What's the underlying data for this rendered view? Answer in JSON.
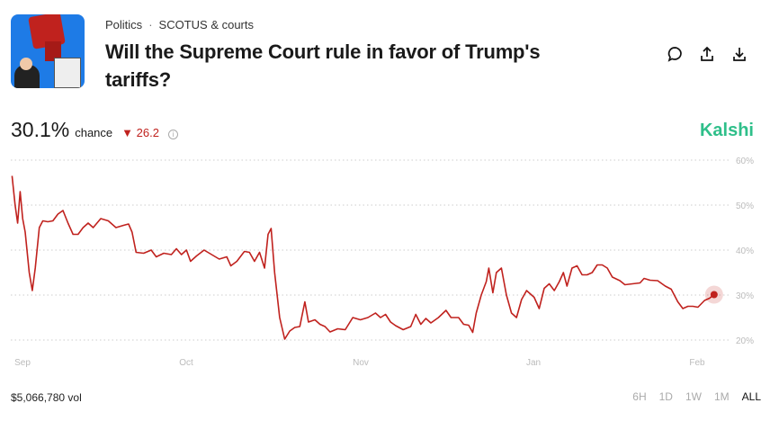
{
  "header": {
    "category": "Politics",
    "subcategory": "SCOTUS & courts",
    "title": "Will the Supreme Court rule in favor of Trump's tariffs?",
    "icons": [
      "comment-icon",
      "share-icon",
      "download-icon"
    ]
  },
  "stat": {
    "value": "30.1%",
    "label": "chance",
    "delta": "26.2",
    "delta_direction": "down",
    "delta_color": "#c0221e"
  },
  "brand": "Kalshi",
  "brand_color": "#2fbf8a",
  "footer": {
    "volume": "$5,066,780 vol",
    "ranges": [
      "6H",
      "1D",
      "1W",
      "1M",
      "ALL"
    ],
    "selected_range": "ALL"
  },
  "chart_data": {
    "type": "line",
    "line_color": "#c0221e",
    "ylim": [
      20,
      60
    ],
    "y_ticks": [
      "60%",
      "50%",
      "40%",
      "30%",
      "20%"
    ],
    "x_ticks": [
      "Sep",
      "Oct",
      "Nov",
      "Jan",
      "Feb"
    ],
    "grid": true,
    "last_value": 30.1,
    "values": [
      56.5,
      50,
      46,
      53,
      47,
      44,
      35,
      31,
      36,
      45,
      46.5,
      46.3,
      46.5,
      48,
      48.8,
      46,
      43.5,
      43.5,
      45,
      46,
      45,
      47,
      46.5,
      45,
      45.5,
      45.8,
      44,
      39.5,
      39.3,
      40,
      38.5,
      39.3,
      39,
      40.3,
      39,
      40,
      37.5,
      38.7,
      40,
      39,
      38,
      38.5,
      36.5,
      37.5,
      39.7,
      39.5,
      37.5,
      39.5,
      36,
      43.5,
      44.8,
      35,
      25,
      20.2,
      22,
      22.8,
      23,
      28.5,
      24,
      24.5,
      23.5,
      23,
      21.8,
      22.5,
      22.3,
      25,
      24.5,
      25,
      26,
      25,
      25.7,
      24,
      23.2,
      22.3,
      23,
      25.7,
      23.5,
      24.8,
      23.8,
      25,
      26.6,
      25,
      25,
      23.5,
      23.3,
      21.7,
      26,
      30,
      33,
      36,
      30.5,
      35,
      36,
      30,
      26,
      25,
      29,
      31,
      29.5,
      27,
      31.5,
      32.5,
      31,
      33,
      35,
      32,
      36,
      36.5,
      34.5,
      34.5,
      35,
      36.7,
      36.7,
      36,
      34,
      33.2,
      32.3,
      32.5,
      32.7,
      33.7,
      33.3,
      33.2,
      32,
      31.3,
      28.5,
      27,
      27.5,
      27.5,
      27.3,
      28.8,
      29.3,
      30.1
    ]
  }
}
